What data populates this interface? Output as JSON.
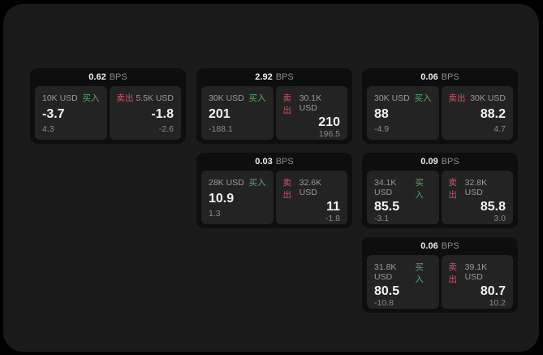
{
  "page": {
    "bps_suffix": "BPS",
    "buy_label": "买入",
    "sell_label": "卖出",
    "colors": {
      "outer_bg": "#000000",
      "surface_bg": "#1a1a1a",
      "card_bg": "#0e0e0e",
      "panel_bg": "#232323",
      "buy_green": "#57a96b",
      "sell_red": "#cd5468"
    }
  },
  "cards": [
    {
      "bps": "0.62",
      "row": 1,
      "col": 1,
      "buy": {
        "amount": "10K USD",
        "value": "-3.7",
        "delta": "4.3"
      },
      "sell": {
        "amount": "5.5K USD",
        "value": "-1.8",
        "delta": "-2.6"
      }
    },
    {
      "bps": "2.92",
      "row": 1,
      "col": 2,
      "buy": {
        "amount": "30K USD",
        "value": "201",
        "delta": "-188.1"
      },
      "sell": {
        "amount": "30.1K USD",
        "value": "210",
        "delta": "196.5"
      }
    },
    {
      "bps": "0.06",
      "row": 1,
      "col": 3,
      "buy": {
        "amount": "30K USD",
        "value": "88",
        "delta": "-4.9"
      },
      "sell": {
        "amount": "30K USD",
        "value": "88.2",
        "delta": "4.7"
      }
    },
    {
      "bps": "0.03",
      "row": 2,
      "col": 2,
      "buy": {
        "amount": "28K USD",
        "value": "10.9",
        "delta": "1.3"
      },
      "sell": {
        "amount": "32.6K USD",
        "value": "11",
        "delta": "-1.8"
      }
    },
    {
      "bps": "0.09",
      "row": 2,
      "col": 3,
      "buy": {
        "amount": "34.1K USD",
        "value": "85.5",
        "delta": "-3.1"
      },
      "sell": {
        "amount": "32.8K USD",
        "value": "85.8",
        "delta": "3.0"
      }
    },
    {
      "bps": "0.06",
      "row": 3,
      "col": 3,
      "buy": {
        "amount": "31.8K USD",
        "value": "80.5",
        "delta": "-10.8"
      },
      "sell": {
        "amount": "39.1K USD",
        "value": "80.7",
        "delta": "10.2"
      }
    }
  ]
}
